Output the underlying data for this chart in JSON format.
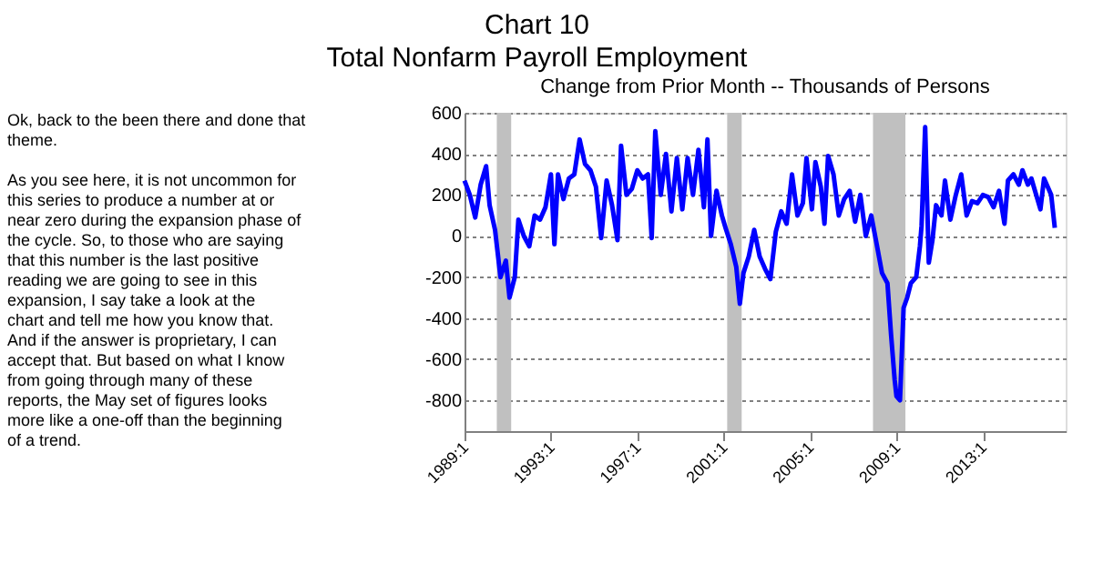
{
  "chart_data": {
    "type": "line",
    "title": "Chart 10",
    "subtitle": "Total Nonfarm Payroll Employment",
    "ylabel": "Change from Prior Month -- Thousands of Persons",
    "annotations": [
      "Ok, back to the been there and done that theme.",
      "As you see here, it is not uncommon for this series to produce a number at or near zero during the expansion phase of the cycle.  So, to those who are saying that this number is the last positive reading we are going to see in this expansion, I say take a look at the chart and tell me how you know that.  And if the answer is proprietary, I can accept that.  But based on what I know from going through many of these reports, the May set of figures looks more like a one-off than the beginning of a trend."
    ],
    "x": [
      "1989-01",
      "1989-04",
      "1989-07",
      "1989-10",
      "1990-01",
      "1990-03",
      "1990-06",
      "1990-09",
      "1990-12",
      "1991-02",
      "1991-05",
      "1991-07",
      "1991-10",
      "1992-01",
      "1992-04",
      "1992-07",
      "1992-10",
      "1993-01",
      "1993-03",
      "1993-05",
      "1993-08",
      "1993-11",
      "1994-02",
      "1994-05",
      "1994-08",
      "1994-11",
      "1995-02",
      "1995-05",
      "1995-08",
      "1995-11",
      "1996-02",
      "1996-04",
      "1996-07",
      "1996-10",
      "1997-01",
      "1997-04",
      "1997-07",
      "1997-09",
      "1997-11",
      "1998-02",
      "1998-05",
      "1998-08",
      "1998-11",
      "1999-02",
      "1999-05",
      "1999-08",
      "1999-11",
      "2000-02",
      "2000-04",
      "2000-06",
      "2000-09",
      "2000-12",
      "2001-02",
      "2001-05",
      "2001-08",
      "2001-10",
      "2001-12",
      "2002-03",
      "2002-06",
      "2002-09",
      "2002-12",
      "2003-03",
      "2003-06",
      "2003-09",
      "2003-12",
      "2004-03",
      "2004-06",
      "2004-09",
      "2004-11",
      "2005-02",
      "2005-04",
      "2005-07",
      "2005-09",
      "2005-11",
      "2006-02",
      "2006-05",
      "2006-08",
      "2006-11",
      "2007-02",
      "2007-05",
      "2007-08",
      "2007-11",
      "2008-02",
      "2008-05",
      "2008-08",
      "2008-10",
      "2008-12",
      "2009-01",
      "2009-03",
      "2009-05",
      "2009-07",
      "2009-09",
      "2009-12",
      "2010-02",
      "2010-03",
      "2010-05",
      "2010-07",
      "2010-09",
      "2010-11",
      "2011-02",
      "2011-04",
      "2011-07",
      "2011-10",
      "2012-01",
      "2012-04",
      "2012-07",
      "2012-10",
      "2013-01",
      "2013-04",
      "2013-07",
      "2013-10",
      "2014-01",
      "2014-03",
      "2014-06",
      "2014-09",
      "2014-11",
      "2015-02",
      "2015-04",
      "2015-06",
      "2015-09",
      "2015-11",
      "2016-01",
      "2016-03",
      "2016-05"
    ],
    "series": [
      {
        "color": "#0000ff",
        "values": [
          270,
          200,
          90,
          250,
          340,
          150,
          30,
          -200,
          -120,
          -300,
          -200,
          80,
          0,
          -50,
          100,
          80,
          140,
          300,
          -40,
          300,
          180,
          280,
          300,
          470,
          350,
          320,
          240,
          -10,
          270,
          150,
          -20,
          440,
          200,
          230,
          320,
          280,
          300,
          -10,
          510,
          200,
          400,
          120,
          380,
          130,
          380,
          200,
          420,
          140,
          470,
          0,
          220,
          100,
          40,
          -40,
          -150,
          -330,
          -180,
          -100,
          30,
          -100,
          -160,
          -210,
          20,
          120,
          60,
          300,
          100,
          160,
          380,
          130,
          360,
          240,
          60,
          390,
          300,
          100,
          180,
          220,
          70,
          200,
          0,
          100,
          -40,
          -180,
          -230,
          -480,
          -700,
          -780,
          -800,
          -350,
          -300,
          -230,
          -200,
          -50,
          50,
          530,
          -130,
          -20,
          150,
          100,
          270,
          80,
          200,
          300,
          100,
          170,
          160,
          200,
          190,
          140,
          220,
          60,
          270,
          300,
          250,
          320,
          250,
          280,
          220,
          130,
          280,
          240,
          200,
          40
        ]
      }
    ],
    "xlim": [
      "1989-01",
      "2016-11"
    ],
    "ylim": [
      -950,
      600
    ],
    "xticks": [
      {
        "value": "1989-01",
        "label": "1989:1"
      },
      {
        "value": "1993-01",
        "label": "1993:1"
      },
      {
        "value": "1997-01",
        "label": "1997:1"
      },
      {
        "value": "2001-01",
        "label": "2001:1"
      },
      {
        "value": "2005-01",
        "label": "2005:1"
      },
      {
        "value": "2009-01",
        "label": "2009:1"
      },
      {
        "value": "2013-01",
        "label": "2013:1"
      }
    ],
    "yticks": [
      -800,
      -600,
      -400,
      -200,
      0,
      200,
      400,
      600
    ],
    "bands": [
      {
        "axis": "x",
        "from": "1990-07",
        "to": "1991-03",
        "color": "#c0c0c0"
      },
      {
        "axis": "x",
        "from": "2001-03",
        "to": "2001-11",
        "color": "#c0c0c0"
      },
      {
        "axis": "x",
        "from": "2007-12",
        "to": "2009-06",
        "color": "#c0c0c0"
      }
    ],
    "grid": "y",
    "marker": "none",
    "line_style": "solid"
  }
}
